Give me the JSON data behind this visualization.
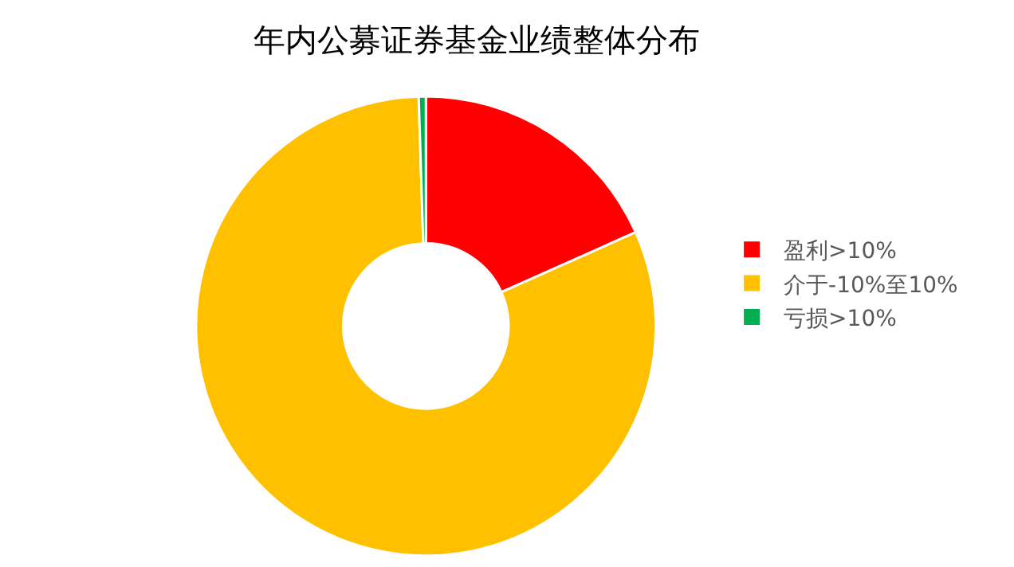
{
  "chart_data": {
    "type": "donut",
    "title": "年内公募证券基金业绩整体分布",
    "categories": [
      "盈利>10%",
      "介于-10%至10%",
      "亏损>10%"
    ],
    "values": [
      18.3,
      81.2,
      0.5
    ],
    "colors": [
      "#ff0000",
      "#ffc000",
      "#00b050"
    ],
    "legend": "right"
  }
}
